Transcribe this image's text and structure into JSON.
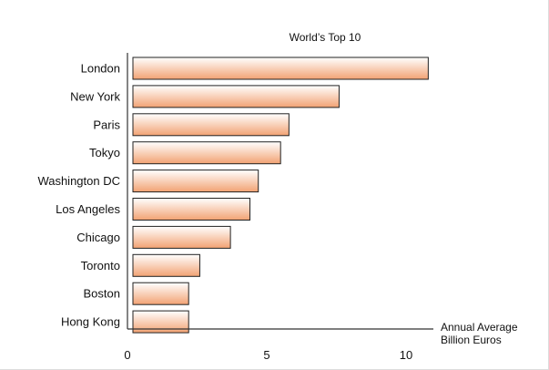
{
  "chart_data": {
    "type": "bar",
    "orientation": "horizontal",
    "title": "World’s Top 10",
    "categories": [
      "London",
      "New York",
      "Paris",
      "Tokyo",
      "Washington DC",
      "Los Angeles",
      "Chicago",
      "Toronto",
      "Boston",
      "Hong Kong"
    ],
    "values": [
      10.6,
      7.4,
      5.6,
      5.3,
      4.5,
      4.2,
      3.5,
      2.4,
      2.0,
      2.0
    ],
    "xlabel": [
      "Annual Average",
      "Billion Euros"
    ],
    "ylabel": "",
    "xlim": [
      0,
      11
    ],
    "xticks": [
      0,
      5,
      10
    ],
    "grid": false,
    "colors": {
      "bar_light": "#ffffff",
      "bar_dark": "#f2a273",
      "bar_stroke": "#222222",
      "axis": "#333333"
    }
  }
}
